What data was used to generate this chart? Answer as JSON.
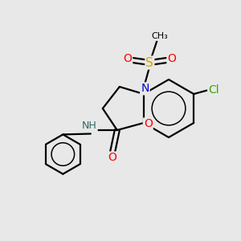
{
  "bg_color": "#e8e8e8",
  "bond_color": "#000000",
  "atom_colors": {
    "N": "#0000cc",
    "O": "#ff0000",
    "S": "#ccaa00",
    "Cl": "#33aa00",
    "H": "#336666",
    "C": "#000000"
  },
  "bond_width": 1.6,
  "figsize": [
    3.0,
    3.0
  ],
  "dpi": 100
}
